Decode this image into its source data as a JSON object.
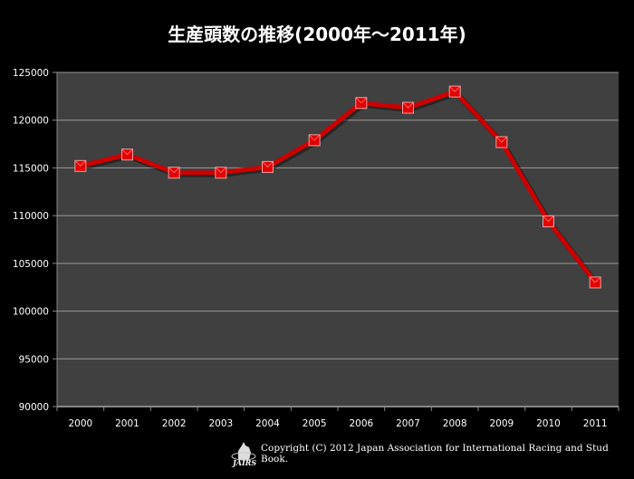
{
  "chart_data": {
    "type": "line",
    "title": "生産頭数の推移(2000年～2011年)",
    "xlabel": "",
    "ylabel": "",
    "categories": [
      "2000",
      "2001",
      "2002",
      "2003",
      "2004",
      "2005",
      "2006",
      "2007",
      "2008",
      "2009",
      "2010",
      "2011"
    ],
    "series": [
      {
        "name": "生産頭数",
        "values": [
          115200,
          116400,
          114500,
          114500,
          115100,
          117900,
          121800,
          121300,
          123000,
          117700,
          109400,
          103000
        ]
      }
    ],
    "ylim": [
      90000,
      125000
    ],
    "yticks": [
      "90000",
      "95000",
      "100000",
      "105000",
      "110000",
      "115000",
      "120000",
      "125000"
    ],
    "grid": true,
    "legend": "none",
    "colors": {
      "line": "#cc0000",
      "marker": "#e00000",
      "plot_bg": "#404040",
      "grid": "#9a9a9a"
    }
  },
  "footer": {
    "logo_text": "JAIRS",
    "copyright": "Copyright (C) 2012 Japan Association for International Racing and Stud Book."
  }
}
